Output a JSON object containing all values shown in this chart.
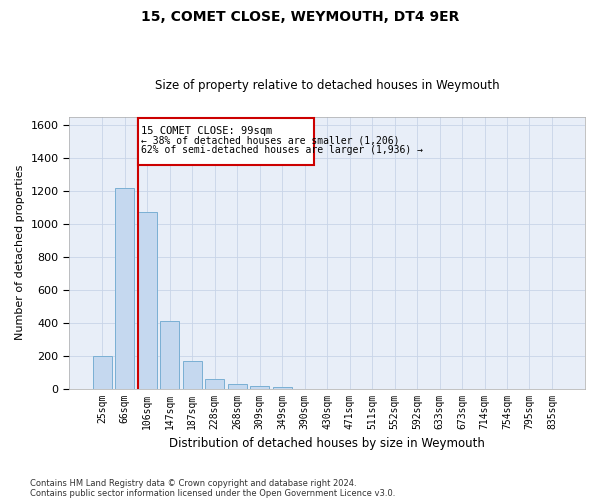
{
  "title": "15, COMET CLOSE, WEYMOUTH, DT4 9ER",
  "subtitle": "Size of property relative to detached houses in Weymouth",
  "xlabel": "Distribution of detached houses by size in Weymouth",
  "ylabel": "Number of detached properties",
  "categories": [
    "25sqm",
    "66sqm",
    "106sqm",
    "147sqm",
    "187sqm",
    "228sqm",
    "268sqm",
    "309sqm",
    "349sqm",
    "390sqm",
    "430sqm",
    "471sqm",
    "511sqm",
    "552sqm",
    "592sqm",
    "633sqm",
    "673sqm",
    "714sqm",
    "754sqm",
    "795sqm",
    "835sqm"
  ],
  "values": [
    200,
    1220,
    1070,
    410,
    165,
    55,
    25,
    18,
    12,
    0,
    0,
    0,
    0,
    0,
    0,
    0,
    0,
    0,
    0,
    0,
    0
  ],
  "bar_color": "#c5d8ef",
  "bar_edge_color": "#7aafd4",
  "highlight_index": 2,
  "highlight_color": "#cc0000",
  "ylim": [
    0,
    1650
  ],
  "yticks": [
    0,
    200,
    400,
    600,
    800,
    1000,
    1200,
    1400,
    1600
  ],
  "property_label": "15 COMET CLOSE: 99sqm",
  "annotation_line1": "← 38% of detached houses are smaller (1,206)",
  "annotation_line2": "62% of semi-detached houses are larger (1,936) →",
  "footer_line1": "Contains HM Land Registry data © Crown copyright and database right 2024.",
  "footer_line2": "Contains public sector information licensed under the Open Government Licence v3.0.",
  "background_color": "#ffffff",
  "plot_bg_color": "#e8eef8",
  "grid_color": "#c8d4e8"
}
